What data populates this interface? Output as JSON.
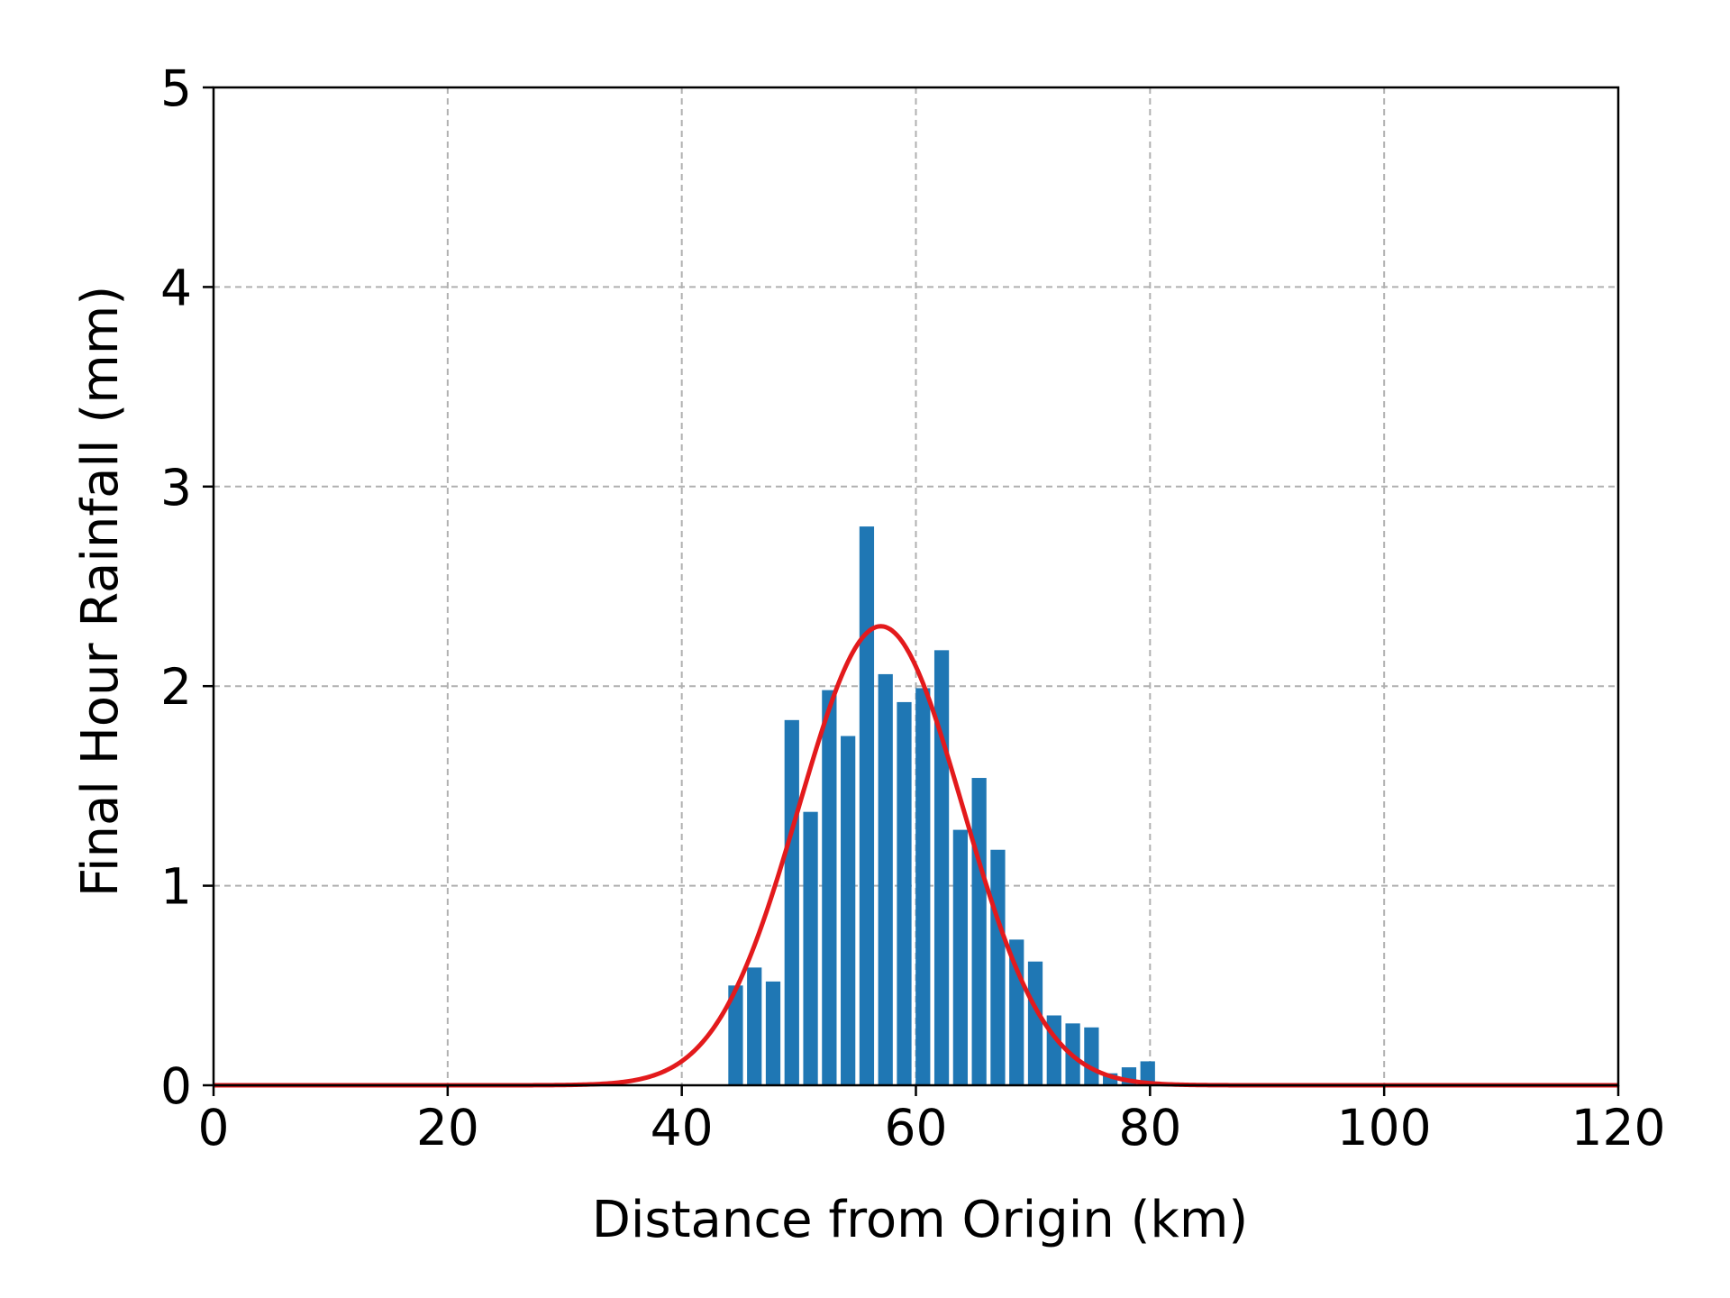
{
  "chart_data": {
    "type": "bar",
    "title": "",
    "xlabel": "Distance from Origin (km)",
    "ylabel": "Final Hour Rainfall (mm)",
    "xlim": [
      0,
      120
    ],
    "ylim": [
      0,
      5
    ],
    "xticks": [
      "0",
      "20",
      "40",
      "60",
      "80",
      "100",
      "120"
    ],
    "yticks": [
      "0",
      "1",
      "2",
      "3",
      "4",
      "5"
    ],
    "grid": true,
    "bar_color": "#1f77b4",
    "bar_width": 1.25,
    "bars": {
      "x": [
        44.6,
        46.2,
        47.8,
        49.4,
        51.0,
        52.6,
        54.2,
        55.8,
        57.4,
        59.0,
        60.6,
        62.2,
        63.8,
        65.4,
        67.0,
        68.6,
        70.2,
        71.8,
        73.4,
        75.0,
        76.6,
        78.2,
        79.8
      ],
      "values": [
        0.5,
        0.59,
        0.52,
        1.83,
        1.37,
        1.98,
        1.75,
        2.8,
        2.06,
        1.92,
        1.99,
        2.18,
        1.28,
        1.54,
        1.18,
        0.73,
        0.62,
        0.35,
        0.31,
        0.29,
        0.06,
        0.09,
        0.12
      ]
    },
    "series": [
      {
        "type": "line",
        "color": "#e31a1c",
        "curve": "gaussian",
        "amplitude": 2.3,
        "mean": 57.0,
        "sigma": 7.0
      }
    ]
  }
}
